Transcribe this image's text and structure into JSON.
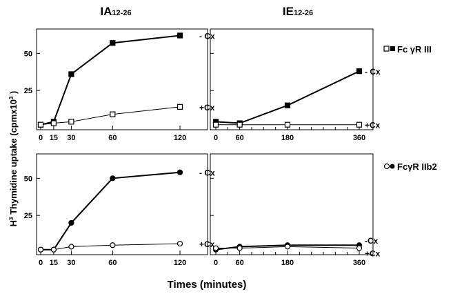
{
  "figure": {
    "xlabel": "Times (minutes)",
    "ylabel_main": "H",
    "ylabel_sup": "3",
    "ylabel_text": " Thymidine uptake (cpmx10",
    "ylabel_sup2": "3",
    "ylabel_end": " )",
    "column_titles": [
      {
        "main": "IA",
        "sub": "12-26"
      },
      {
        "main": "IE",
        "sub": "12-26"
      }
    ],
    "row_legends": [
      {
        "open_symbol": "square",
        "filled_symbol": "square",
        "text": "Fc γR III"
      },
      {
        "open_symbol": "circle",
        "filled_symbol": "circle",
        "text": "FcγR IIb2"
      }
    ]
  },
  "chart_data": [
    {
      "type": "line",
      "panel": "top-left",
      "x": [
        0,
        15,
        30,
        60,
        120
      ],
      "x_ticks": [
        "0",
        "15",
        "30",
        "60",
        "120"
      ],
      "y_ticks": [
        "25",
        "50"
      ],
      "ylim": [
        0,
        65
      ],
      "marker": "square",
      "series": [
        {
          "name": "- Cx",
          "filled": true,
          "values": [
            2,
            4,
            36,
            57,
            62
          ]
        },
        {
          "name": "+Cx",
          "filled": false,
          "values": [
            2,
            3,
            4,
            9,
            14
          ]
        }
      ]
    },
    {
      "type": "line",
      "panel": "top-right",
      "x": [
        0,
        60,
        180,
        360
      ],
      "x_ticks": [
        "0",
        "60",
        "180",
        "360"
      ],
      "y_ticks": [],
      "ylim": [
        0,
        65
      ],
      "marker": "square",
      "series": [
        {
          "name": "- Cx",
          "filled": true,
          "values": [
            4,
            3,
            15,
            38
          ]
        },
        {
          "name": "+Cx",
          "filled": false,
          "values": [
            2,
            2,
            2,
            2
          ]
        }
      ]
    },
    {
      "type": "line",
      "panel": "bottom-left",
      "x": [
        0,
        15,
        30,
        60,
        120
      ],
      "x_ticks": [
        "0",
        "15",
        "30",
        "60",
        "120"
      ],
      "y_ticks": [
        "25",
        "50"
      ],
      "ylim": [
        0,
        65
      ],
      "marker": "circle",
      "series": [
        {
          "name": "- Cx",
          "filled": true,
          "values": [
            2,
            2,
            20,
            50,
            54
          ]
        },
        {
          "name": "+Cx",
          "filled": false,
          "values": [
            2,
            2,
            4,
            5,
            6
          ]
        }
      ]
    },
    {
      "type": "line",
      "panel": "bottom-right",
      "x": [
        0,
        60,
        180,
        360
      ],
      "x_ticks": [
        "0",
        "60",
        "180",
        "360"
      ],
      "y_ticks": [],
      "ylim": [
        0,
        65
      ],
      "marker": "circle",
      "series": [
        {
          "name": "-Cx",
          "filled": true,
          "values": [
            2,
            4,
            5,
            5
          ]
        },
        {
          "name": "+Cx",
          "filled": false,
          "values": [
            3,
            3,
            4,
            3
          ]
        }
      ]
    }
  ]
}
